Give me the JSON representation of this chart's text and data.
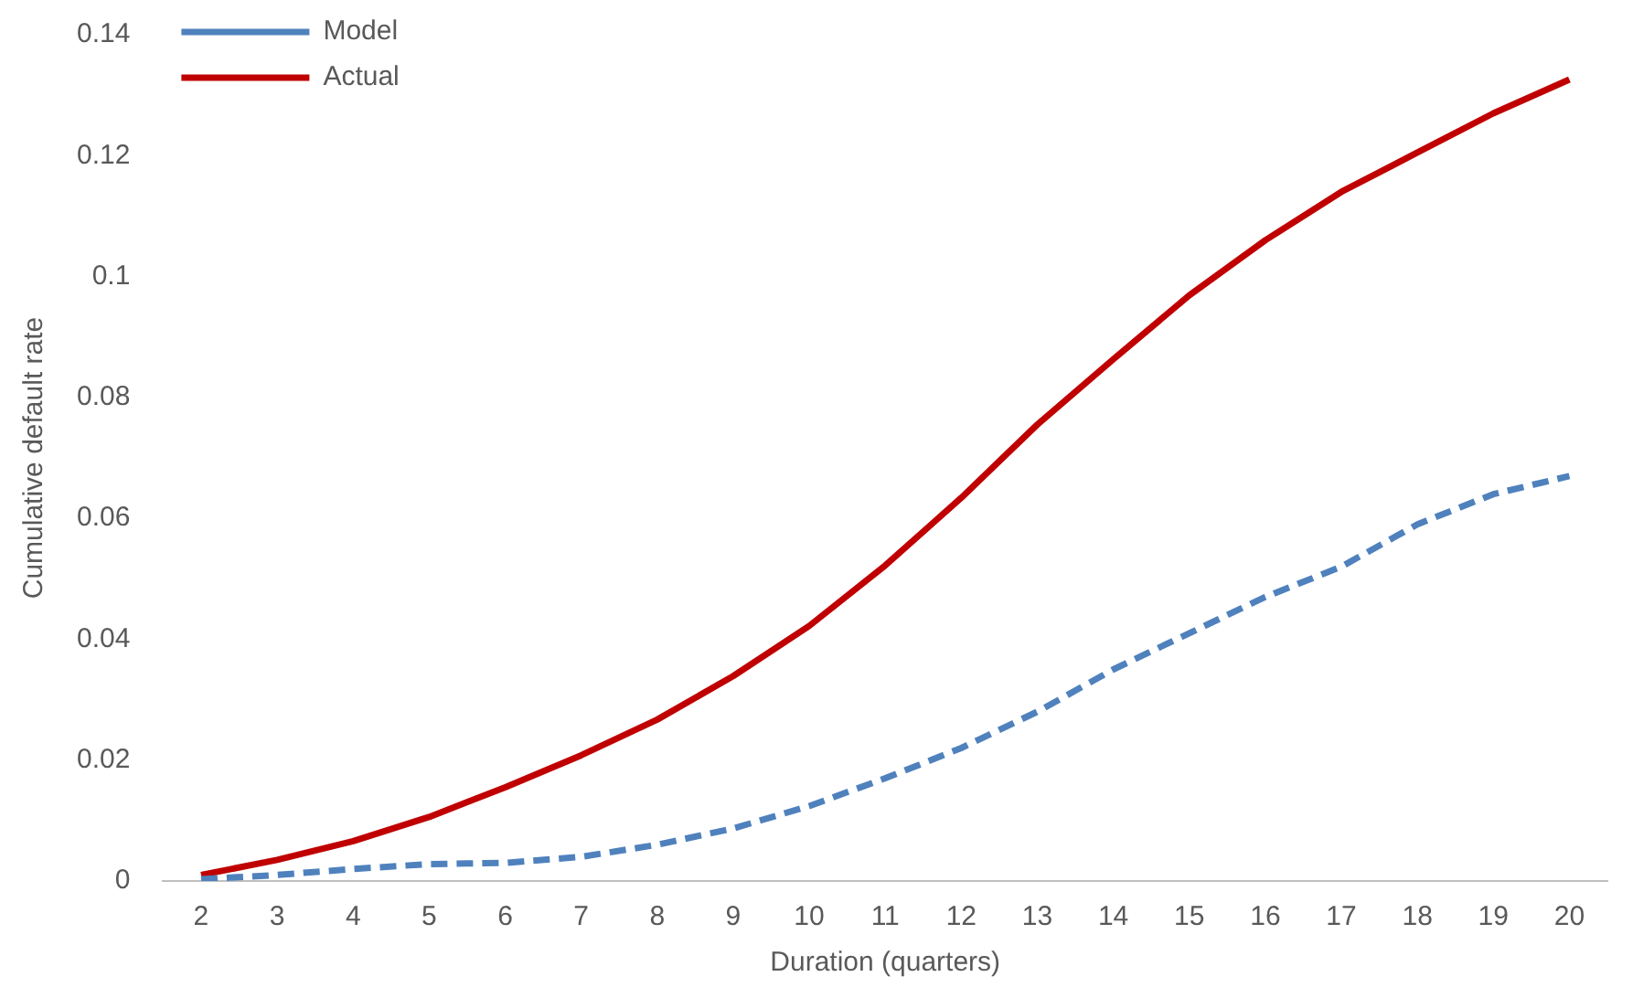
{
  "chart_data": {
    "type": "line",
    "xlabel": "Duration (quarters)",
    "ylabel": "Cumulative default rate",
    "categories": [
      "2",
      "3",
      "4",
      "5",
      "6",
      "7",
      "8",
      "9",
      "10",
      "11",
      "12",
      "13",
      "14",
      "15",
      "16",
      "17",
      "18",
      "19",
      "20"
    ],
    "series": [
      {
        "name": "Model",
        "color": "#4f81bd",
        "line_style": "dashed",
        "values": [
          0.0003,
          0.001,
          0.002,
          0.0028,
          0.003,
          0.004,
          0.006,
          0.0087,
          0.0124,
          0.017,
          0.022,
          0.028,
          0.035,
          0.041,
          0.047,
          0.052,
          0.059,
          0.064,
          0.067
        ]
      },
      {
        "name": "Actual",
        "color": "#c00000",
        "line_style": "solid",
        "values": [
          0.001,
          0.0035,
          0.0066,
          0.0106,
          0.0155,
          0.0208,
          0.0267,
          0.0339,
          0.0422,
          0.0522,
          0.0634,
          0.0755,
          0.0863,
          0.0969,
          0.106,
          0.114,
          0.1205,
          0.127,
          0.1326
        ]
      }
    ],
    "ylim": [
      0,
      0.14
    ],
    "yticks": [
      0,
      0.02,
      0.04,
      0.06,
      0.08,
      0.1,
      0.12,
      0.14
    ],
    "grid": false,
    "legend": "top left",
    "marker": "none"
  }
}
